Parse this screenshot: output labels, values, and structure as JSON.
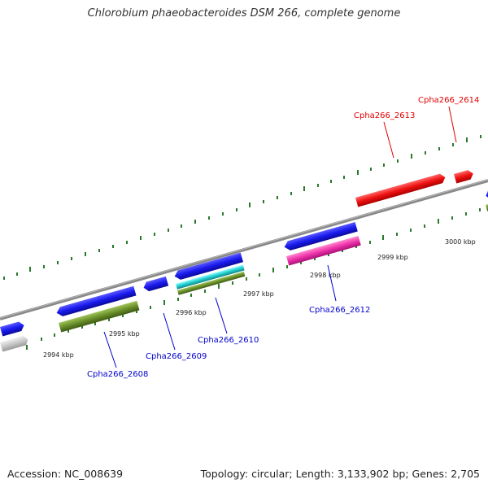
{
  "title": "Chlorobium phaeobacteroides DSM 266, complete genome",
  "footer": {
    "accession": "Accession: NC_008639",
    "summary": "Topology: circular; Length: 3,133,902 bp; Genes: 2,705"
  },
  "scale_labels": [
    "2994 kbp",
    "2995 kbp",
    "2996 kbp",
    "2997 kbp",
    "2998 kbp",
    "2999 kbp",
    "3000 kbp"
  ],
  "gene_labels": [
    {
      "id": "Cpha266_2608",
      "color": "#0000cc"
    },
    {
      "id": "Cpha266_2609",
      "color": "#0000cc"
    },
    {
      "id": "Cpha266_2610",
      "color": "#0000cc"
    },
    {
      "id": "Cpha266_2612",
      "color": "#0000cc"
    },
    {
      "id": "Cpha266_2613",
      "color": "#e00000"
    },
    {
      "id": "Cpha266_2614",
      "color": "#e00000"
    }
  ],
  "colors": {
    "backbone": "#777777",
    "tick": "#2a7a2a",
    "gene_blue": "#1a1aee",
    "gene_red": "#ee1111",
    "gene_magenta": "#ee33aa",
    "gene_cyan": "#22cccc",
    "gene_olive": "#6a8f2a",
    "gene_grey": "#c8c8c8",
    "label_blue": "#0000cc",
    "label_red": "#e00000"
  }
}
